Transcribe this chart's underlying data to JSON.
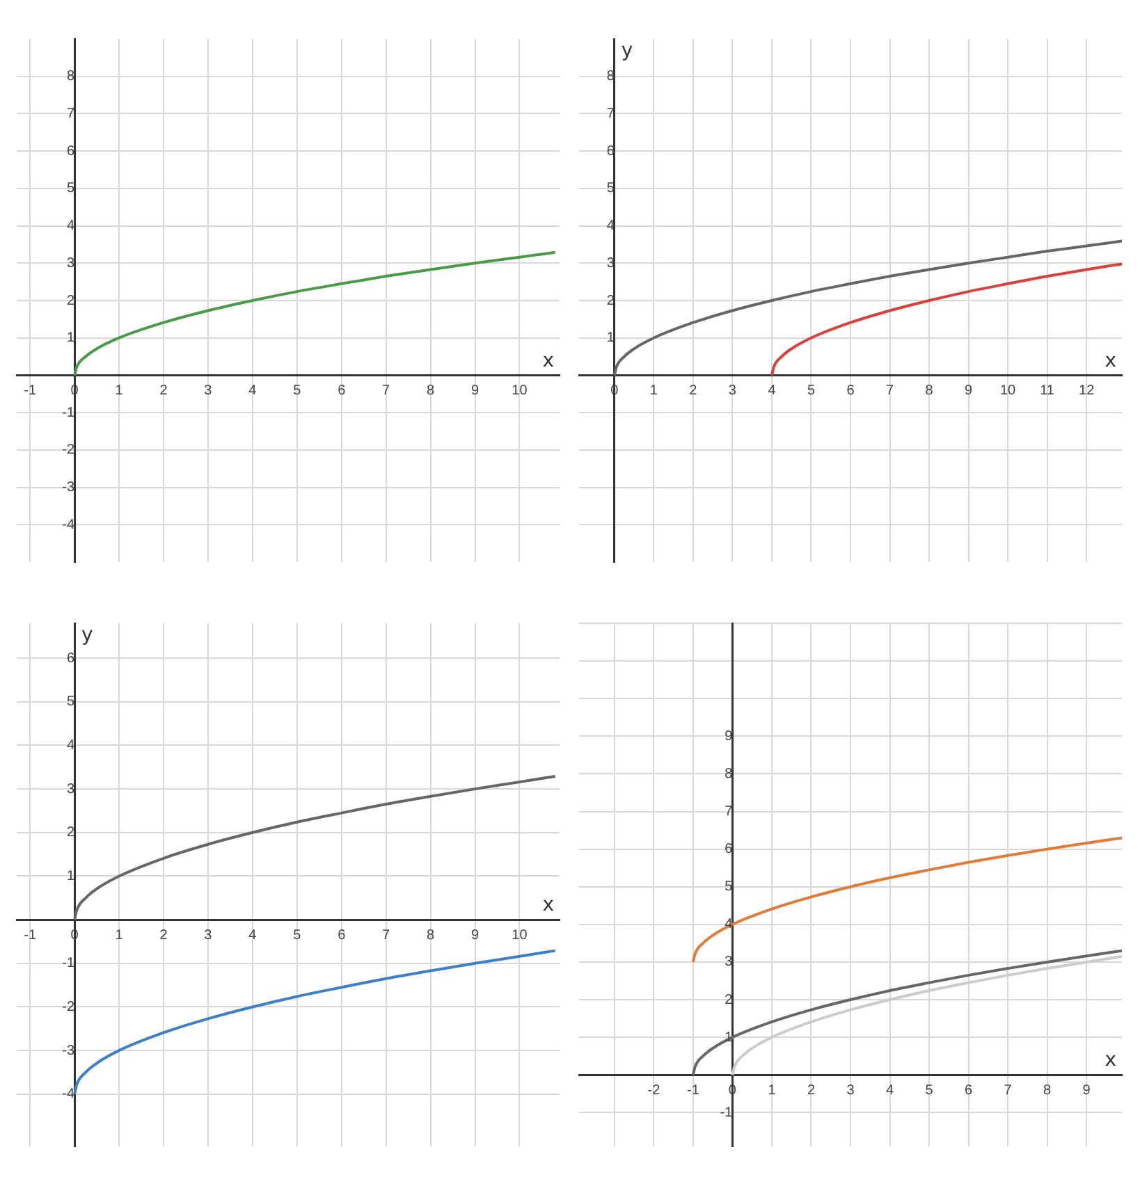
{
  "chart_data": [
    {
      "type": "line",
      "xlabel": "x",
      "xlim": [
        -1.3,
        10.9
      ],
      "ylim": [
        -5,
        9
      ],
      "xticks": [
        -1,
        0,
        1,
        2,
        3,
        4,
        5,
        6,
        7,
        8,
        9,
        10
      ],
      "yticks": [
        -4,
        -3,
        -2,
        -1,
        1,
        2,
        3,
        4,
        5,
        6,
        7,
        8
      ],
      "grid": true,
      "legend": false,
      "marker": "none",
      "line_style": "solid",
      "series": [
        {
          "color": "#4a9a4a",
          "x": [
            0,
            0.05,
            0.25,
            0.5,
            1,
            2,
            3,
            4,
            5,
            6,
            7,
            8,
            9,
            10,
            10.8
          ],
          "values": [
            0,
            0.22,
            0.5,
            0.71,
            1,
            1.41,
            1.73,
            2,
            2.24,
            2.45,
            2.65,
            2.83,
            3,
            3.16,
            3.29
          ]
        }
      ]
    },
    {
      "type": "line",
      "xlabel": "x",
      "ylabel": "y",
      "xlim": [
        -0.9,
        12.9
      ],
      "ylim": [
        -5,
        9
      ],
      "xticks": [
        0,
        1,
        2,
        3,
        4,
        5,
        6,
        7,
        8,
        9,
        10,
        11,
        12
      ],
      "yticks": [
        {
          "value": -4,
          "label": null
        },
        {
          "value": -3,
          "label": null
        },
        {
          "value": -2,
          "label": null
        },
        {
          "value": -1,
          "label": null
        },
        1,
        2,
        3,
        4,
        5,
        6,
        7,
        8
      ],
      "grid": true,
      "legend": false,
      "marker": "none",
      "line_style": "solid",
      "series": [
        {
          "color": "#666666",
          "x": [
            0,
            0.05,
            0.25,
            0.5,
            1,
            2,
            3,
            4,
            5,
            6,
            7,
            8,
            9,
            10,
            11,
            12,
            12.9
          ],
          "values": [
            0,
            0.22,
            0.5,
            0.71,
            1,
            1.41,
            1.73,
            2,
            2.24,
            2.45,
            2.65,
            2.83,
            3,
            3.16,
            3.32,
            3.46,
            3.59
          ]
        },
        {
          "color": "#d9413b",
          "x": [
            4,
            4.05,
            4.25,
            4.5,
            5,
            6,
            7,
            8,
            9,
            10,
            11,
            12,
            12.9
          ],
          "values": [
            0,
            0.22,
            0.5,
            0.71,
            1,
            1.41,
            1.73,
            2,
            2.24,
            2.45,
            2.65,
            2.83,
            2.98
          ]
        }
      ]
    },
    {
      "type": "line",
      "xlabel": "x",
      "ylabel": "y",
      "xlim": [
        -1.3,
        10.9
      ],
      "ylim": [
        -5.2,
        6.8
      ],
      "xticks": [
        -1,
        0,
        1,
        2,
        3,
        4,
        5,
        6,
        7,
        8,
        9,
        10
      ],
      "yticks": [
        -4,
        -3,
        -2,
        -1,
        1,
        2,
        3,
        4,
        5,
        6
      ],
      "grid": true,
      "legend": false,
      "marker": "none",
      "line_style": "solid",
      "series": [
        {
          "color": "#666666",
          "x": [
            0,
            0.05,
            0.25,
            0.5,
            1,
            2,
            3,
            4,
            5,
            6,
            7,
            8,
            9,
            10,
            10.8
          ],
          "values": [
            0,
            0.22,
            0.5,
            0.71,
            1,
            1.41,
            1.73,
            2,
            2.24,
            2.45,
            2.65,
            2.83,
            3,
            3.16,
            3.29
          ]
        },
        {
          "color": "#3f7fc8",
          "x": [
            0,
            0.05,
            0.25,
            0.5,
            1,
            2,
            3,
            4,
            5,
            6,
            7,
            8,
            9,
            10,
            10.8
          ],
          "values": [
            -4,
            -3.78,
            -3.5,
            -3.29,
            -3,
            -2.59,
            -2.27,
            -2,
            -1.76,
            -1.55,
            -1.35,
            -1.17,
            -1,
            -0.84,
            -0.71
          ]
        }
      ]
    },
    {
      "type": "line",
      "xlabel": "x",
      "xlim": [
        -3.9,
        9.9
      ],
      "ylim": [
        -1.9,
        12
      ],
      "xticks": [
        {
          "value": -3,
          "label": null
        },
        -2,
        -1,
        0,
        1,
        2,
        3,
        4,
        5,
        6,
        7,
        8,
        9
      ],
      "yticks": [
        -1,
        1,
        2,
        3,
        4,
        5,
        6,
        7,
        8,
        9,
        {
          "value": 10,
          "label": null
        },
        {
          "value": 11,
          "label": null
        },
        {
          "value": 12,
          "label": null
        }
      ],
      "grid": true,
      "legend": false,
      "marker": "none",
      "line_style": "solid",
      "series": [
        {
          "color": "#e07b39",
          "x": [
            -1,
            -0.95,
            -0.75,
            -0.5,
            0,
            1,
            2,
            3,
            4,
            5,
            6,
            7,
            8,
            9,
            9.9
          ],
          "values": [
            3,
            3.22,
            3.5,
            3.71,
            4,
            4.41,
            4.73,
            5,
            5.24,
            5.45,
            5.65,
            5.83,
            6,
            6.16,
            6.3
          ]
        },
        {
          "color": "#666666",
          "x": [
            -1,
            -0.95,
            -0.75,
            -0.5,
            0,
            1,
            2,
            3,
            4,
            5,
            6,
            7,
            8,
            9,
            9.9
          ],
          "values": [
            0,
            0.22,
            0.5,
            0.71,
            1,
            1.41,
            1.73,
            2,
            2.24,
            2.45,
            2.65,
            2.83,
            3,
            3.16,
            3.3
          ]
        },
        {
          "color": "#cccccc",
          "x": [
            0,
            0.05,
            0.25,
            0.5,
            1,
            2,
            3,
            4,
            5,
            6,
            7,
            8,
            9,
            9.9
          ],
          "values": [
            0,
            0.22,
            0.5,
            0.71,
            1,
            1.41,
            1.73,
            2,
            2.24,
            2.45,
            2.65,
            2.83,
            3,
            3.15
          ]
        }
      ]
    }
  ]
}
